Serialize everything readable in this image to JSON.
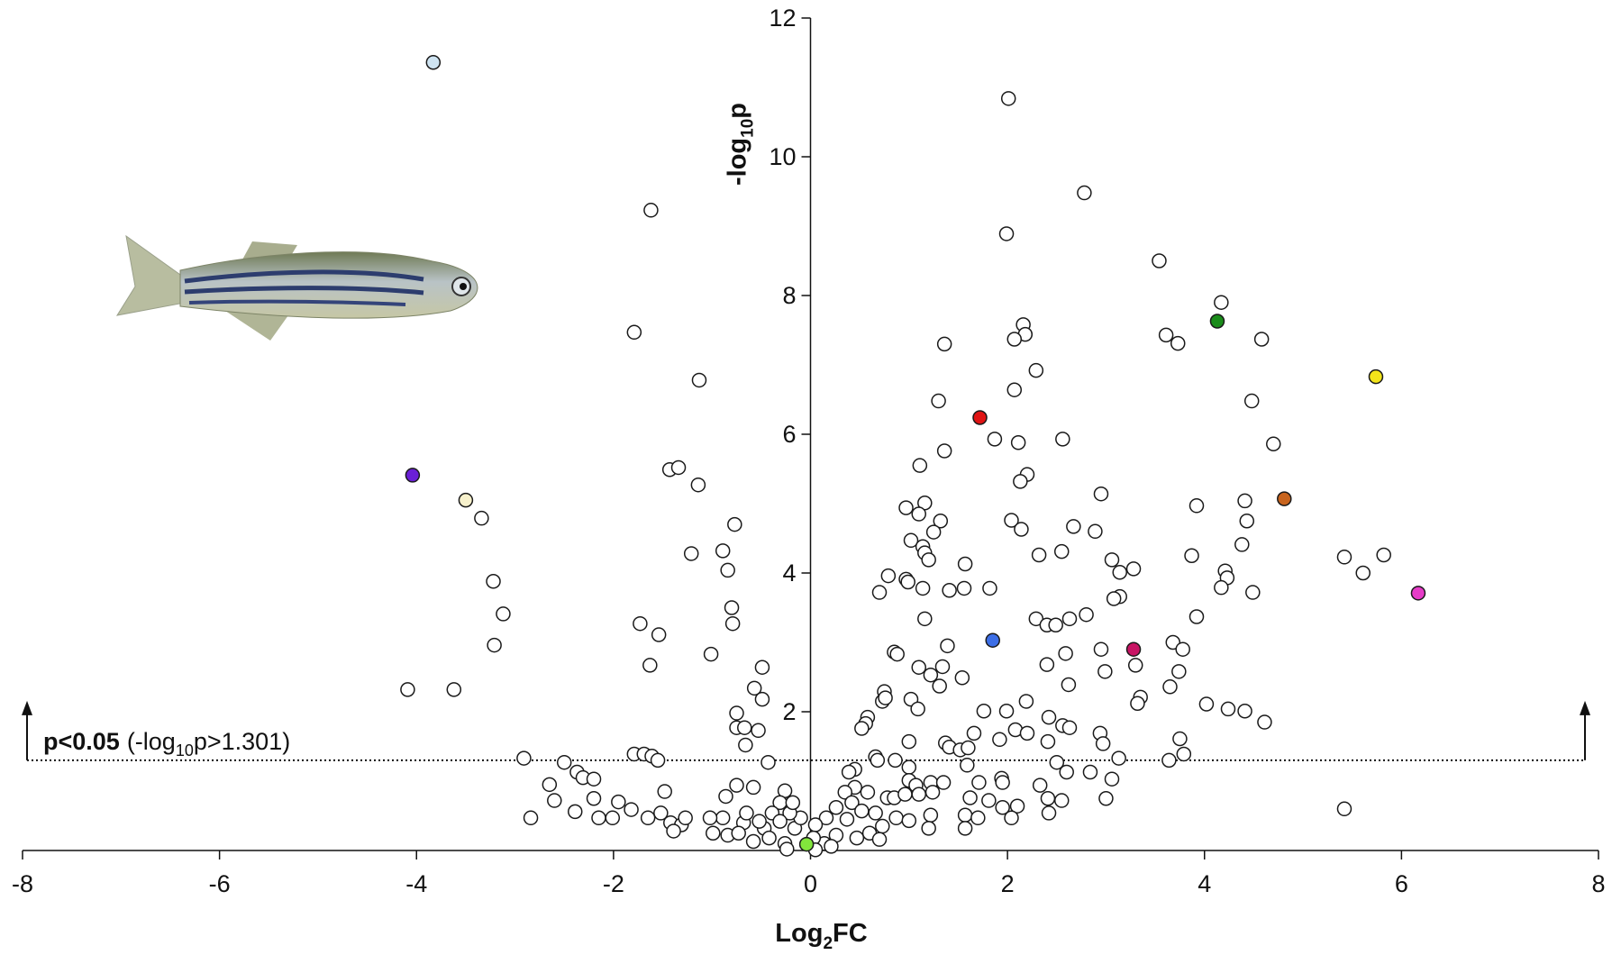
{
  "chart_data": {
    "type": "scatter",
    "x_label": [
      "Log",
      "2",
      "FC"
    ],
    "y_label": [
      "-log",
      "10",
      "p"
    ],
    "xlim": [
      -8,
      8
    ],
    "ylim": [
      0,
      12
    ],
    "xticks": [
      -8,
      -6,
      -4,
      -2,
      0,
      2,
      4,
      6,
      8
    ],
    "yticks": [
      2,
      4,
      6,
      8,
      10,
      12
    ],
    "threshold": 1.301,
    "annotation": {
      "bold": "p<0.05",
      "text": [
        "(-log",
        "10",
        "p>1.301)"
      ]
    },
    "series": [
      {
        "color": "#ffffff",
        "x": [
          -1.62,
          -1.79,
          -1.13,
          -1.43,
          -1.34,
          -1.14,
          -3.34,
          -1.21,
          -0.89,
          -0.77,
          -0.84,
          -3.22,
          -3.12,
          -3.21,
          -4.09,
          -3.62,
          -0.8,
          -0.79,
          -1.73,
          -1.54,
          -1.63,
          -1.01,
          -0.49,
          -0.57,
          -0.49,
          -0.75,
          -0.75,
          -0.67,
          -0.53,
          -0.66,
          -2.91,
          -2.5,
          -1.79,
          -1.69,
          -1.61,
          -1.55,
          -0.43,
          -2.37,
          -2.31,
          -2.2,
          -2.65,
          -2.6,
          -1.48,
          -2.84,
          -2.39,
          -2.15,
          -2.01,
          -2.2,
          -1.95,
          -1.82,
          -1.65,
          -1.52,
          -1.42,
          -1.31,
          -1.27,
          -1.39,
          -0.86,
          -0.75,
          -0.58,
          -0.26,
          -0.31,
          -0.39,
          -0.47,
          -0.68,
          -0.89,
          -1.02,
          -0.99,
          -0.84,
          -0.58,
          -0.42,
          -0.26,
          -0.24,
          -0.16,
          -0.1,
          -0.21,
          -0.31,
          -0.52,
          -0.73,
          -0.65,
          -0.18,
          2.01,
          2.78,
          1.99,
          3.54,
          4.17,
          2.16,
          2.18,
          2.07,
          1.36,
          3.61,
          3.73,
          4.58,
          2.29,
          2.07,
          1.3,
          4.48,
          1.87,
          2.11,
          2.56,
          1.36,
          4.7,
          1.11,
          2.2,
          2.13,
          2.95,
          0.97,
          1.16,
          1.1,
          3.92,
          4.41,
          4.43,
          2.04,
          2.14,
          2.67,
          2.89,
          1.32,
          1.25,
          1.02,
          1.14,
          1.16,
          2.32,
          2.55,
          1.2,
          1.57,
          4.38,
          3.06,
          3.28,
          3.14,
          3.87,
          4.21,
          4.23,
          4.17,
          4.49,
          5.42,
          5.61,
          5.82,
          0.79,
          0.7,
          0.97,
          0.99,
          1.14,
          1.41,
          1.56,
          1.82,
          3.14,
          3.08,
          1.16,
          2.29,
          2.4,
          2.49,
          2.63,
          2.8,
          3.92,
          2.59,
          2.95,
          3.68,
          3.78,
          1.39,
          0.85,
          0.88,
          1.34,
          1.1,
          1.22,
          1.54,
          3.3,
          2.99,
          3.74,
          2.4,
          2.62,
          3.65,
          1.31,
          0.75,
          0.73,
          0.76,
          1.02,
          1.09,
          2.19,
          3.35,
          3.32,
          4.02,
          4.24,
          4.41,
          4.61,
          1.76,
          1.99,
          0.58,
          0.56,
          0.52,
          2.42,
          2.56,
          2.63,
          1.66,
          2.08,
          2.2,
          1.0,
          1.92,
          2.94,
          3.75,
          1.37,
          1.41,
          1.52,
          1.6,
          2.41,
          2.97,
          3.79,
          3.64,
          0.66,
          0.68,
          0.86,
          2.5,
          3.13,
          0.45,
          0.39,
          1.0,
          1.59,
          2.6,
          2.84,
          1.94,
          1.95,
          1.71,
          1.0,
          1.07,
          1.22,
          1.35,
          3.06,
          2.33,
          0.45,
          0.58,
          0.35,
          0.78,
          0.85,
          0.96,
          1.1,
          1.24,
          1.62,
          1.81,
          2.41,
          2.55,
          3.0,
          5.42,
          0.42,
          0.26,
          0.52,
          0.66,
          0.87,
          1.22,
          1.57,
          1.95,
          2.1,
          2.04,
          1.7,
          2.42,
          0.16,
          0.37,
          0.05,
          0.73,
          1.0,
          1.2,
          1.57,
          0.26,
          0.47,
          0.6,
          0.7,
          0.14,
          0.03,
          0.21,
          0.05
        ],
        "values": [
          9.23,
          7.47,
          6.78,
          5.49,
          5.52,
          5.27,
          4.79,
          4.28,
          4.32,
          4.7,
          4.04,
          3.88,
          3.41,
          2.96,
          2.32,
          2.32,
          3.5,
          3.27,
          3.27,
          3.11,
          2.67,
          2.83,
          2.64,
          2.34,
          2.18,
          1.98,
          1.77,
          1.77,
          1.73,
          1.52,
          1.33,
          1.27,
          1.39,
          1.39,
          1.36,
          1.3,
          1.27,
          1.13,
          1.05,
          1.03,
          0.95,
          0.72,
          0.85,
          0.47,
          0.56,
          0.47,
          0.47,
          0.75,
          0.7,
          0.59,
          0.47,
          0.54,
          0.4,
          0.37,
          0.47,
          0.28,
          0.78,
          0.94,
          0.91,
          0.86,
          0.69,
          0.54,
          0.32,
          0.4,
          0.47,
          0.47,
          0.25,
          0.22,
          0.13,
          0.18,
          0.1,
          0.02,
          0.32,
          0.47,
          0.54,
          0.42,
          0.42,
          0.25,
          0.54,
          0.69,
          10.84,
          9.48,
          8.89,
          8.5,
          7.9,
          7.58,
          7.44,
          7.37,
          7.3,
          7.43,
          7.31,
          7.37,
          6.92,
          6.64,
          6.48,
          6.48,
          5.93,
          5.88,
          5.93,
          5.76,
          5.86,
          5.55,
          5.42,
          5.32,
          5.14,
          4.94,
          5.01,
          4.85,
          4.97,
          5.04,
          4.75,
          4.76,
          4.63,
          4.67,
          4.6,
          4.75,
          4.59,
          4.47,
          4.38,
          4.29,
          4.26,
          4.31,
          4.19,
          4.13,
          4.41,
          4.19,
          4.06,
          4.01,
          4.25,
          4.03,
          3.93,
          3.79,
          3.72,
          4.23,
          4.0,
          4.26,
          3.96,
          3.72,
          3.91,
          3.87,
          3.78,
          3.75,
          3.78,
          3.78,
          3.66,
          3.63,
          3.34,
          3.34,
          3.25,
          3.25,
          3.34,
          3.4,
          3.37,
          2.84,
          2.9,
          3.0,
          2.9,
          2.95,
          2.86,
          2.83,
          2.65,
          2.64,
          2.53,
          2.49,
          2.67,
          2.58,
          2.58,
          2.68,
          2.39,
          2.36,
          2.37,
          2.29,
          2.15,
          2.2,
          2.18,
          2.04,
          2.15,
          2.21,
          2.12,
          2.11,
          2.04,
          2.01,
          1.85,
          2.01,
          2.01,
          1.92,
          1.83,
          1.76,
          1.92,
          1.8,
          1.77,
          1.69,
          1.74,
          1.69,
          1.57,
          1.6,
          1.69,
          1.61,
          1.55,
          1.49,
          1.45,
          1.48,
          1.57,
          1.54,
          1.39,
          1.3,
          1.35,
          1.3,
          1.3,
          1.27,
          1.33,
          1.17,
          1.13,
          1.2,
          1.23,
          1.13,
          1.13,
          1.04,
          0.98,
          0.98,
          1.01,
          0.94,
          0.98,
          0.98,
          1.03,
          0.94,
          0.91,
          0.84,
          0.84,
          0.76,
          0.76,
          0.81,
          0.81,
          0.84,
          0.76,
          0.72,
          0.75,
          0.72,
          0.75,
          0.6,
          0.69,
          0.62,
          0.57,
          0.54,
          0.47,
          0.51,
          0.51,
          0.62,
          0.64,
          0.47,
          0.47,
          0.54,
          0.47,
          0.45,
          0.37,
          0.35,
          0.43,
          0.32,
          0.32,
          0.22,
          0.18,
          0.25,
          0.16,
          0.1,
          0.18,
          0.06,
          0.01
        ]
      },
      {
        "color": "#cfe4f2",
        "x": [
          -3.83
        ],
        "values": [
          11.36
        ]
      },
      {
        "color": "#6a1fd6",
        "x": [
          -4.04
        ],
        "values": [
          5.41
        ]
      },
      {
        "color": "#f7f1cc",
        "x": [
          -3.5
        ],
        "values": [
          5.05
        ]
      },
      {
        "color": "#e01414",
        "x": [
          1.72
        ],
        "values": [
          6.24
        ]
      },
      {
        "color": "#1a8c1a",
        "x": [
          4.13
        ],
        "values": [
          7.63
        ]
      },
      {
        "color": "#f2e41a",
        "x": [
          5.74
        ],
        "values": [
          6.83
        ]
      },
      {
        "color": "#c8641e",
        "x": [
          4.81
        ],
        "values": [
          5.07
        ]
      },
      {
        "color": "#e63cc8",
        "x": [
          6.17
        ],
        "values": [
          3.71
        ]
      },
      {
        "color": "#3c6ee6",
        "x": [
          1.85
        ],
        "values": [
          3.03
        ]
      },
      {
        "color": "#c81464",
        "x": [
          3.28
        ],
        "values": [
          2.9
        ]
      },
      {
        "color": "#82e63c",
        "x": [
          -0.04
        ],
        "values": [
          0.09
        ]
      }
    ]
  }
}
